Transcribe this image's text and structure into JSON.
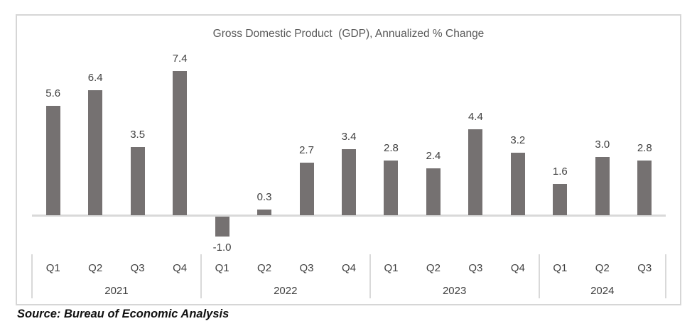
{
  "chart_data": {
    "type": "bar",
    "title": "Gross Domestic Product  (GDP), Annualized % Change",
    "xlabel": "",
    "ylabel": "",
    "ylim": [
      -1.5,
      8.1
    ],
    "grid": false,
    "legend": false,
    "bar_color": "#757171",
    "line_color": "#d9d9d9",
    "text_color": "#404040",
    "title_color": "#595959",
    "groups": [
      {
        "year": "2021",
        "points": [
          {
            "q": "Q1",
            "v": 5.6,
            "label": "5.6"
          },
          {
            "q": "Q2",
            "v": 6.4,
            "label": "6.4"
          },
          {
            "q": "Q3",
            "v": 3.5,
            "label": "3.5"
          },
          {
            "q": "Q4",
            "v": 7.4,
            "label": "7.4"
          }
        ]
      },
      {
        "year": "2022",
        "points": [
          {
            "q": "Q1",
            "v": -1.0,
            "label": "-1.0"
          },
          {
            "q": "Q2",
            "v": 0.3,
            "label": "0.3"
          },
          {
            "q": "Q3",
            "v": 2.7,
            "label": "2.7"
          },
          {
            "q": "Q4",
            "v": 3.4,
            "label": "3.4"
          }
        ]
      },
      {
        "year": "2023",
        "points": [
          {
            "q": "Q1",
            "v": 2.8,
            "label": "2.8"
          },
          {
            "q": "Q2",
            "v": 2.4,
            "label": "2.4"
          },
          {
            "q": "Q3",
            "v": 4.4,
            "label": "4.4"
          },
          {
            "q": "Q4",
            "v": 3.2,
            "label": "3.2"
          }
        ]
      },
      {
        "year": "2024",
        "points": [
          {
            "q": "Q1",
            "v": 1.6,
            "label": "1.6"
          },
          {
            "q": "Q2",
            "v": 3.0,
            "label": "3.0"
          },
          {
            "q": "Q3",
            "v": 2.8,
            "label": "2.8"
          }
        ]
      }
    ]
  },
  "source_note": "Source: Bureau of Economic Analysis"
}
